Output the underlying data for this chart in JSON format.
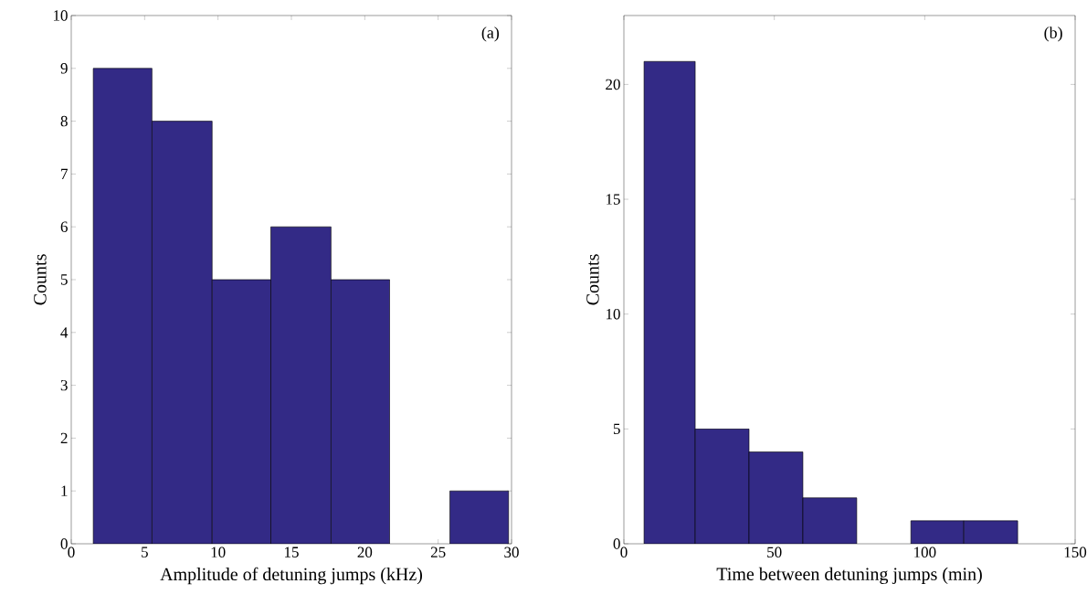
{
  "chart_data": [
    {
      "type": "histogram",
      "xlabel": "Amplitude of detuning jumps (kHz)",
      "ylabel": "Counts",
      "annotations": [
        "(a)"
      ],
      "color": "#332a86",
      "bins": [
        1.5,
        5.5,
        9.6,
        13.6,
        17.7,
        21.7,
        25.8,
        29.8
      ],
      "values": [
        9,
        8,
        5,
        6,
        5,
        0,
        1
      ],
      "xlim": [
        0,
        30
      ],
      "ylim": [
        0,
        10
      ],
      "xticks": [
        0,
        5,
        10,
        15,
        20,
        25,
        30
      ],
      "yticks": [
        0,
        1,
        2,
        3,
        4,
        5,
        6,
        7,
        8,
        9,
        10
      ]
    },
    {
      "type": "histogram",
      "xlabel": "Time between detuning jumps (min)",
      "ylabel": "Counts",
      "annotations": [
        "(b)"
      ],
      "color": "#332a86",
      "bins": [
        6.7,
        23.7,
        41.6,
        59.5,
        77.4,
        95.4,
        113,
        130.9
      ],
      "values": [
        21,
        5,
        4,
        2,
        0,
        1,
        1
      ],
      "xlim": [
        0,
        150
      ],
      "ylim": [
        0,
        23
      ],
      "xticks": [
        0,
        50,
        100,
        150
      ],
      "yticks": [
        0,
        5,
        10,
        15,
        20
      ]
    }
  ]
}
